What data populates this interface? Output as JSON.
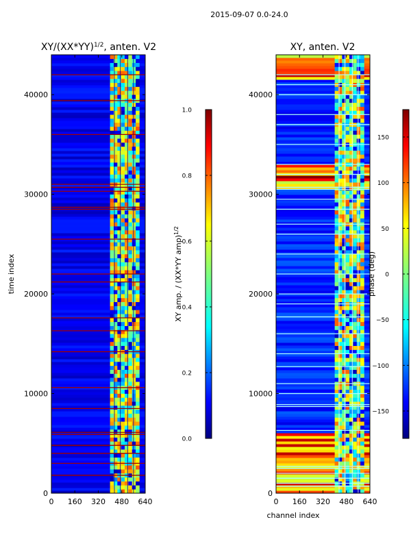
{
  "suptitle": "2015-09-07 0.0-24.0",
  "chart_data": [
    {
      "type": "heatmap",
      "title": "XY/(XX*YY)^1/2, anten. V2",
      "title_main": "XY/(XX*YY)",
      "title_exp": "1/2",
      "title_tail": ", anten. V2",
      "xlabel": "",
      "ylabel": "time index",
      "xlim": [
        0,
        640
      ],
      "ylim": [
        0,
        44000
      ],
      "xticks": [
        0,
        160,
        320,
        480,
        640
      ],
      "yticks": [
        0,
        10000,
        20000,
        30000,
        40000
      ],
      "colorbar": {
        "label": "XY amp. / (XX*YY amp)^1/2",
        "label_main": "XY amp. / (XX*YY amp)",
        "label_exp": "1/2",
        "range": [
          0.0,
          1.0
        ],
        "ticks": [
          0.0,
          0.2,
          0.4,
          0.6,
          0.8,
          1.0
        ],
        "tick_labels": [
          "0.0",
          "0.2",
          "0.4",
          "0.6",
          "0.8",
          "1.0"
        ],
        "colormap": "jet"
      },
      "active_channel_range": [
        400,
        600
      ],
      "flagged_rows": [
        1800,
        3000,
        4000,
        4800,
        5900,
        6100,
        8500,
        10600,
        14200,
        16300,
        17600,
        21200,
        22000,
        25500,
        28500,
        28700,
        30300,
        30700,
        31000,
        36000,
        39400,
        42000
      ]
    },
    {
      "type": "heatmap",
      "title": "XY, anten. V2",
      "xlabel": "channel index",
      "ylabel": "",
      "xlim": [
        0,
        640
      ],
      "ylim": [
        0,
        44000
      ],
      "xticks": [
        0,
        160,
        320,
        480,
        640
      ],
      "yticks": [
        0,
        10000,
        20000,
        30000,
        40000
      ],
      "colorbar": {
        "label": "phase (deg)",
        "range": [
          -180,
          180
        ],
        "ticks": [
          -150,
          -100,
          -50,
          0,
          50,
          100,
          150
        ],
        "tick_labels": [
          "−150",
          "−100",
          "−50",
          "0",
          "50",
          "100",
          "150"
        ],
        "colormap": "jet"
      },
      "active_channel_range": [
        400,
        600
      ],
      "gap_rows": [
        700,
        1000,
        1500,
        2000,
        2500,
        2700,
        6300,
        8700,
        8900,
        10000,
        11000,
        12700,
        14000,
        16000,
        17700,
        19000,
        20000,
        22000,
        24000,
        26000,
        27000,
        28500,
        29500,
        30500,
        30700,
        32000,
        33000,
        35000,
        37000,
        38000,
        40000,
        41000,
        42000
      ]
    }
  ],
  "colors": {
    "jet_dark_blue": "#00007f",
    "jet_blue": "#0000ff",
    "jet_cyan": "#00ffff",
    "jet_yellow": "#ffff00",
    "jet_red": "#ff0000",
    "jet_dark_red": "#7f0000",
    "gap_color": "#aaffff"
  }
}
